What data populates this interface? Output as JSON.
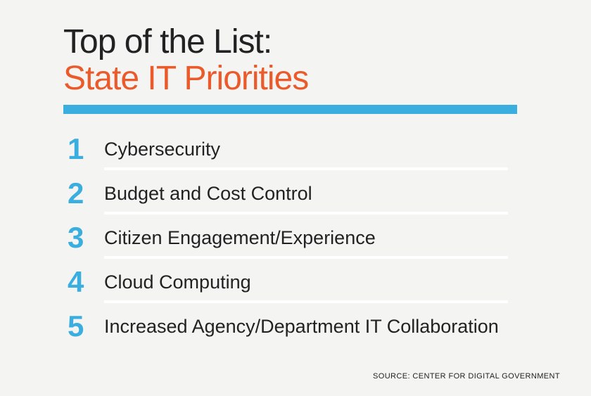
{
  "title": {
    "line1": "Top of the List:",
    "line2": "State IT Priorities"
  },
  "colors": {
    "accent_blue": "#3baee0",
    "accent_orange": "#ea5a2b",
    "text": "#222222",
    "background": "#f4f4f2"
  },
  "priorities": [
    {
      "rank": "1",
      "label": "Cybersecurity"
    },
    {
      "rank": "2",
      "label": "Budget and Cost Control"
    },
    {
      "rank": "3",
      "label": "Citizen Engagement/Experience"
    },
    {
      "rank": "4",
      "label": "Cloud Computing"
    },
    {
      "rank": "5",
      "label": "Increased Agency/Department IT Collaboration"
    }
  ],
  "source": "SOURCE: CENTER FOR DIGITAL GOVERNMENT"
}
